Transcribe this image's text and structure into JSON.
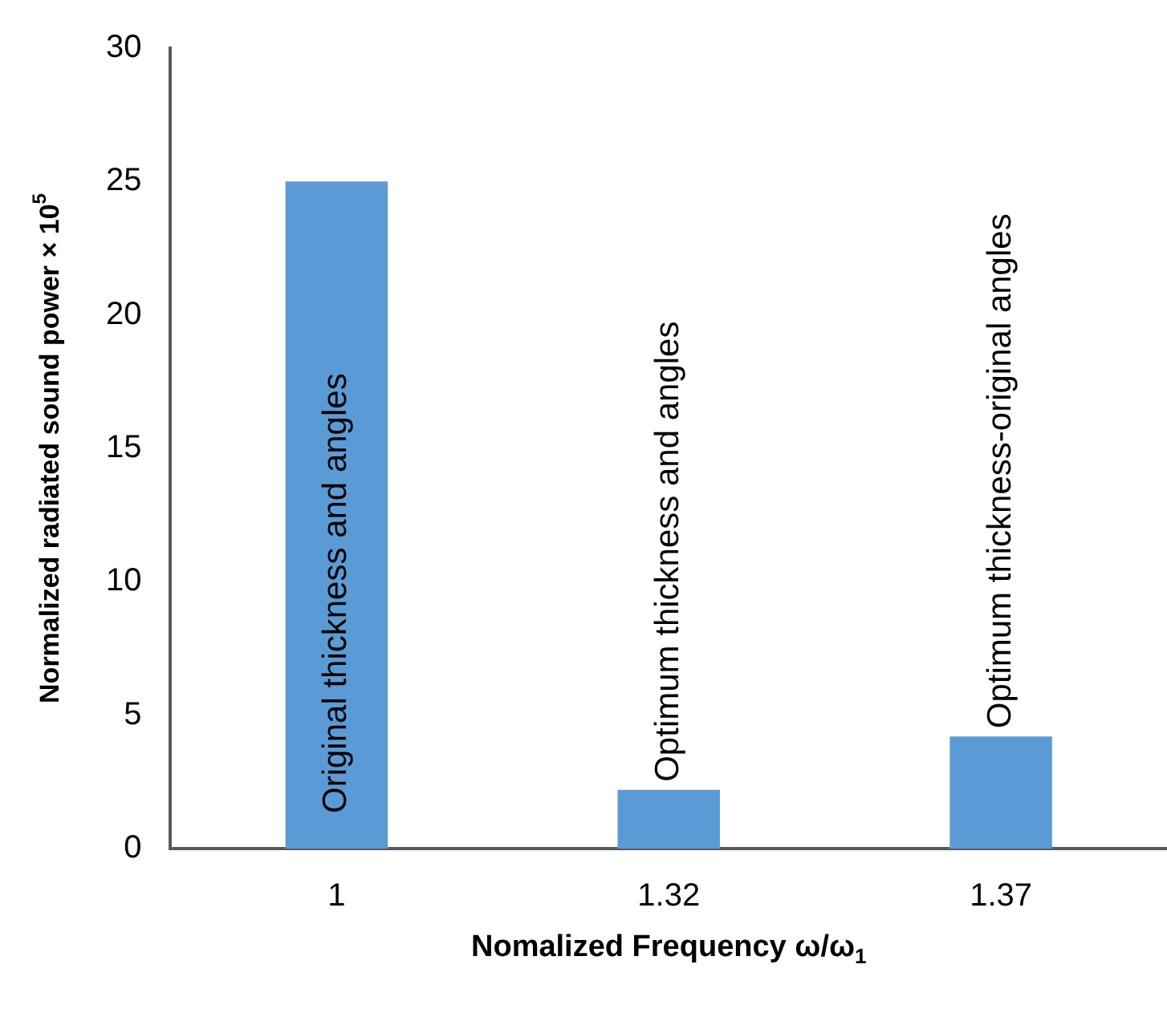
{
  "chart_data": {
    "type": "bar",
    "xlabel": "Nomalized Frequency ω/ω$_{1}$",
    "ylabel": "Normalized radiated sound power × 10$^{5}$",
    "categories": [
      "1",
      "1.32",
      "1.37"
    ],
    "values": [
      25,
      2.2,
      4.2
    ],
    "color": "#5b9bd5",
    "ylim": [
      0,
      30
    ],
    "yticks": [
      0,
      5,
      10,
      15,
      20,
      25,
      30
    ],
    "grid": false,
    "legend": false,
    "annotations": [
      "Original thickness and angles",
      "Optimum thickness and angles",
      "Optimum thickness-original angles"
    ]
  }
}
